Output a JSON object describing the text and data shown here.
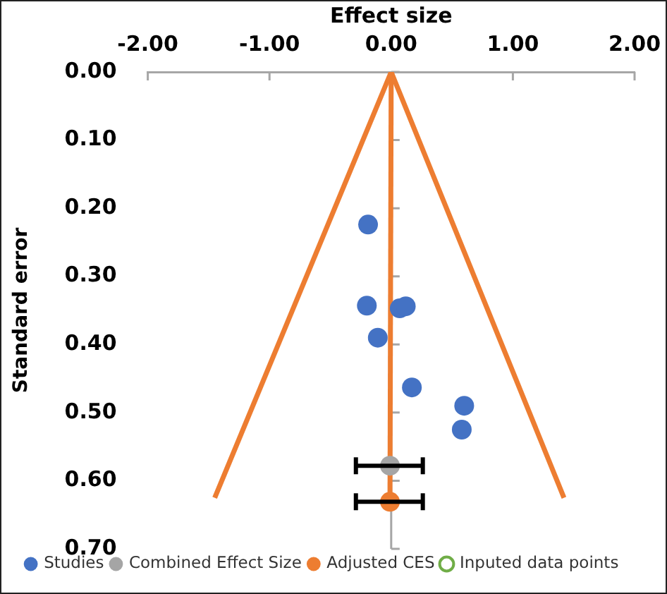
{
  "chart_data": {
    "type": "scatter",
    "xlabel": "Effect size",
    "ylabel": "Standard error",
    "xlim": [
      -2,
      2
    ],
    "xticks": [
      {
        "value": -2,
        "label": "-2.00"
      },
      {
        "value": -1,
        "label": "-1.00"
      },
      {
        "value": 0,
        "label": "0.00"
      },
      {
        "value": 1,
        "label": "1.00"
      },
      {
        "value": 2,
        "label": "2.00"
      }
    ],
    "ylim": [
      0.7,
      0
    ],
    "yticks": [
      {
        "value": 0,
        "label": "0.00"
      },
      {
        "value": 0.1,
        "label": "0.10"
      },
      {
        "value": 0.2,
        "label": "0.20"
      },
      {
        "value": 0.3,
        "label": "0.30"
      },
      {
        "value": 0.4,
        "label": "0.40"
      },
      {
        "value": 0.5,
        "label": "0.50"
      },
      {
        "value": 0.6,
        "label": "0.60"
      },
      {
        "value": 0.7,
        "label": "0.70"
      }
    ],
    "legend": "bottom",
    "marker": "circle",
    "series": [
      {
        "type": "line",
        "marker": "none",
        "color": "#ed7d31",
        "x": [
          0,
          -1.45
        ],
        "values": [
          0,
          0.625
        ]
      },
      {
        "type": "line",
        "marker": "none",
        "color": "#ed7d31",
        "x": [
          0,
          1.42
        ],
        "values": [
          0,
          0.625
        ]
      },
      {
        "type": "line",
        "marker": "none",
        "color": "#ed7d31",
        "x": [
          0,
          -0.01
        ],
        "values": [
          0,
          0.63
        ]
      },
      {
        "name": "Studies",
        "color": "#4472c4",
        "x": [
          -0.19,
          -0.2,
          0.07,
          0.12,
          -0.11,
          0.17,
          0.6,
          0.58
        ],
        "values": [
          0.224,
          0.343,
          0.347,
          0.344,
          0.39,
          0.463,
          0.49,
          0.525
        ]
      },
      {
        "name": "Combined Effect Size",
        "color": "#a5a5a5",
        "x": [
          -0.01
        ],
        "values": [
          0.578
        ],
        "xerrors": [
          [
            -0.29,
            0.26
          ]
        ]
      },
      {
        "name": "Adjusted CES",
        "color": "#ed7d31",
        "x": [
          -0.01
        ],
        "values": [
          0.631
        ],
        "xerrors": [
          [
            -0.29,
            0.26
          ]
        ]
      },
      {
        "name": "Inputed data points",
        "color": "#70ad47",
        "marker": "hollow"
      }
    ]
  }
}
